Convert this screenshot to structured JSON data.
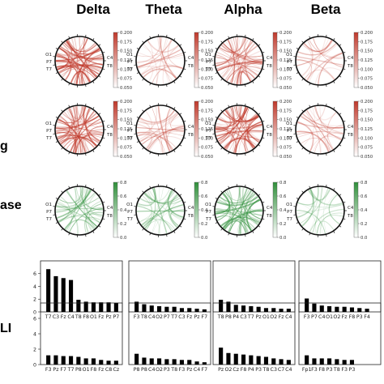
{
  "colors": {
    "red": "#c0392b",
    "green": "#2f8f3a",
    "bar": "#000000"
  },
  "band_titles": [
    "Delta",
    "Theta",
    "Alpha",
    "Beta"
  ],
  "row_labels": [
    "g",
    "ase",
    "",
    "LI"
  ],
  "channel_labels": {
    "left": [
      "O1",
      "P7",
      "T7"
    ],
    "right": [
      "C4",
      "T8"
    ]
  },
  "colorbars": {
    "red": [
      "0.200",
      "0.175",
      "0.150",
      "0.125",
      "0.100",
      "0.075",
      "0.050"
    ],
    "green": [
      "0.8",
      "0.6",
      "0.4",
      "0.2",
      "0.0"
    ]
  },
  "chart_data": [
    {
      "type": "heatmap",
      "subtype": "connectivity-circle",
      "rows": 3,
      "cols": 4,
      "bands": [
        "Delta",
        "Theta",
        "Alpha",
        "Beta"
      ],
      "colormaps": [
        "red",
        "red",
        "green"
      ],
      "ranges": [
        [
          0.05,
          0.2
        ],
        [
          0.05,
          0.2
        ],
        [
          0.0,
          0.8
        ]
      ],
      "intensity": [
        [
          0.95,
          0.3,
          0.7,
          0.25
        ],
        [
          0.95,
          0.35,
          0.85,
          0.3
        ],
        [
          0.55,
          0.45,
          0.8,
          0.25
        ]
      ]
    },
    {
      "type": "bar",
      "rows": 2,
      "ylim": [
        0,
        8
      ],
      "yticks": [
        "0",
        "2",
        "4",
        "6"
      ],
      "panels": [
        [
          {
            "categories": [
              "T7",
              "C3",
              "Fz",
              "C4",
              "T8",
              "F8",
              "O1",
              "Fz",
              "Pz",
              "P7"
            ],
            "values": [
              6.7,
              5.6,
              5.3,
              5.0,
              1.9,
              1.6,
              1.5,
              1.5,
              1.5,
              1.4
            ]
          },
          {
            "categories": [
              "F3",
              "T8",
              "C4",
              "O2",
              "P7",
              "T7",
              "C3",
              "Fz",
              "Pz",
              "F7"
            ],
            "values": [
              1.6,
              1.2,
              1.0,
              0.9,
              0.8,
              0.8,
              0.6,
              0.6,
              0.5,
              0.4
            ]
          },
          {
            "categories": [
              "T8",
              "P8",
              "P4",
              "C3",
              "T7",
              "Pz",
              "O1",
              "O2",
              "Fz",
              "C4"
            ],
            "values": [
              1.9,
              1.6,
              1.1,
              1.0,
              0.9,
              0.8,
              0.6,
              0.6,
              0.5,
              0.5
            ]
          },
          {
            "categories": [
              "F3",
              "P7",
              "C4",
              "O1",
              "O2",
              "Fz",
              "F8",
              "P3",
              "F4"
            ],
            "values": [
              2.1,
              1.3,
              1.0,
              0.9,
              0.8,
              0.8,
              0.7,
              0.6,
              0.5
            ]
          }
        ],
        [
          {
            "categories": [
              "F3",
              "Pz",
              "F7",
              "T7",
              "P8",
              "O1",
              "F8",
              "Fz",
              "C8",
              "Cz"
            ],
            "values": [
              1.2,
              1.2,
              1.1,
              1.1,
              1.0,
              0.8,
              0.8,
              0.6,
              0.5,
              0.5
            ]
          },
          {
            "categories": [
              "P8",
              "P8",
              "C4",
              "O2",
              "P3",
              "T8",
              "F3",
              "Pz",
              "C4",
              "F7"
            ],
            "values": [
              1.4,
              0.9,
              0.8,
              0.8,
              0.7,
              0.7,
              0.6,
              0.6,
              0.4,
              0.3
            ]
          },
          {
            "categories": [
              "Pz",
              "O2",
              "Cz",
              "F8",
              "P4",
              "P3",
              "T8",
              "C3",
              "C7",
              "C4"
            ],
            "values": [
              2.2,
              1.5,
              1.4,
              1.3,
              1.2,
              1.1,
              1.0,
              0.8,
              0.7,
              0.6
            ]
          },
          {
            "categories": [
              "Fp1",
              "F3",
              "F8",
              "P3",
              "T8",
              "F3",
              "P3"
            ],
            "values": [
              1.2,
              0.8,
              0.8,
              0.8,
              0.7,
              0.6,
              0.6
            ]
          }
        ]
      ]
    }
  ]
}
